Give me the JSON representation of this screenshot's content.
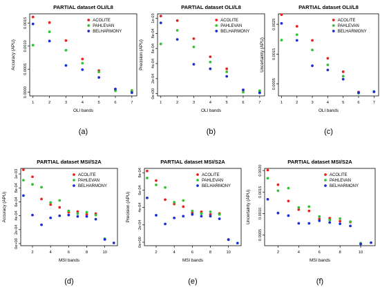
{
  "legend_labels": [
    "ACOLITE",
    "PAHLEVAN",
    "BELHARMONY"
  ],
  "colors": {
    "ACOLITE": "#e8221f",
    "PAHLEVAN": "#33c233",
    "BELHARMONY": "#1a2fd6"
  },
  "chart_data": [
    {
      "type": "scatter",
      "caption": "(a)",
      "title": "PARTIAL dataset OLI/L8",
      "xlabel": "OLI bands",
      "ylabel": "Accuracy (APU)",
      "xlim": [
        0.8,
        7.3
      ],
      "ylim": [
        -8e-05,
        0.0017
      ],
      "xticks": [
        1,
        2,
        3,
        4,
        5,
        6,
        7
      ],
      "xtick_labels": [
        "1",
        "2",
        "3",
        "4",
        "5",
        "6",
        "7"
      ],
      "yticks": [
        0,
        0.0005,
        0.001,
        0.0015
      ],
      "ytick_labels": [
        "0.0000",
        "0.0005",
        "0.0010",
        "0.0015"
      ],
      "legend_position": "top-right",
      "x": [
        1,
        2,
        3,
        4,
        5,
        6,
        7
      ],
      "series": [
        {
          "name": "ACOLITE",
          "values": [
            0.00163,
            0.00151,
            0.00112,
            0.00072,
            0.00047,
            7e-05,
            1e-05
          ]
        },
        {
          "name": "PAHLEVAN",
          "values": [
            0.00102,
            0.00131,
            0.00091,
            0.00063,
            0.00044,
            3e-05,
            4e-05
          ]
        },
        {
          "name": "BELHARMONY",
          "values": [
            0.00148,
            0.00111,
            0.00058,
            0.00049,
            0.00032,
            7e-05,
            -1e-05
          ]
        }
      ]
    },
    {
      "type": "scatter",
      "caption": "(b)",
      "title": "PARTIAL dataset OLI/L8",
      "xlabel": "OLI bands",
      "ylabel": "Precision (APU)",
      "xlim": [
        0.8,
        7.3
      ],
      "ylim": [
        -3e-05,
        0.00106
      ],
      "xticks": [
        1,
        2,
        3,
        4,
        5,
        6,
        7
      ],
      "xtick_labels": [
        "1",
        "2",
        "3",
        "4",
        "5",
        "6",
        "7"
      ],
      "yticks": [
        0,
        0.0002,
        0.0004,
        0.0006,
        0.0008,
        0.001
      ],
      "ytick_labels": [
        "0e+00",
        "2e-04",
        "4e-04",
        "6e-04",
        "8e-04",
        "1e-03"
      ],
      "legend_position": "top-right",
      "x": [
        1,
        2,
        3,
        4,
        5,
        6,
        7
      ],
      "series": [
        {
          "name": "ACOLITE",
          "values": [
            0.00103,
            0.00097,
            0.00073,
            0.00049,
            0.00033,
            5e-05,
            2e-05
          ]
        },
        {
          "name": "PAHLEVAN",
          "values": [
            0.00066,
            0.00084,
            0.00062,
            0.00042,
            0.00029,
            2e-05,
            4e-05
          ]
        },
        {
          "name": "BELHARMONY",
          "values": [
            0.00094,
            0.00072,
            0.00039,
            0.00033,
            0.00023,
            5e-05,
            1e-05
          ]
        }
      ]
    },
    {
      "type": "scatter",
      "caption": "(c)",
      "title": "PARTIAL dataset OLI/L8",
      "xlabel": "OLI bands",
      "ylabel": "Uncertainty (APU)",
      "xlim": [
        0.8,
        7.3
      ],
      "ylim": [
        0.0001,
        0.00285
      ],
      "xticks": [
        1,
        2,
        3,
        4,
        5,
        6,
        7
      ],
      "xtick_labels": [
        "1",
        "2",
        "3",
        "4",
        "5",
        "6",
        "7"
      ],
      "yticks": [
        0.0005,
        0.0015,
        0.0025
      ],
      "ytick_labels": [
        "0.0005",
        "0.0015",
        "0.0025"
      ],
      "legend_position": "top-right",
      "x": [
        1,
        2,
        3,
        4,
        5,
        6,
        7
      ],
      "series": [
        {
          "name": "ACOLITE",
          "values": [
            0.00282,
            0.00243,
            0.00196,
            0.00136,
            0.00091,
            0.00023,
            0.00024
          ]
        },
        {
          "name": "PAHLEVAN",
          "values": [
            0.00197,
            0.00215,
            0.00164,
            0.00114,
            0.00076,
            0.00019,
            0.00025
          ]
        },
        {
          "name": "BELHARMONY",
          "values": [
            0.00253,
            0.00196,
            0.00111,
            0.00097,
            0.00066,
            0.00021,
            0.00024
          ]
        }
      ]
    },
    {
      "type": "scatter",
      "caption": "(d)",
      "title": "PARTIAL dataset MSI/S2A",
      "xlabel": "MSI bands",
      "ylabel": "Accuracy (APU)",
      "xlim": [
        0.7,
        11.4
      ],
      "ylim": [
        -3e-05,
        0.00108
      ],
      "xticks": [
        2,
        4,
        6,
        8,
        10
      ],
      "xtick_labels": [
        "2",
        "4",
        "6",
        "8",
        "10"
      ],
      "yticks": [
        0,
        0.0002,
        0.0004,
        0.0006,
        0.0008,
        0.001
      ],
      "ytick_labels": [
        "0e+00",
        "2e-04",
        "4e-04",
        "6e-04",
        "8e-04",
        "1e-03"
      ],
      "legend_position": "top-right",
      "x": [
        1,
        2,
        3,
        4,
        5,
        6,
        7,
        8,
        9,
        10,
        11
      ],
      "series": [
        {
          "name": "ACOLITE",
          "values": [
            0.00106,
            0.00096,
            0.00064,
            0.00056,
            0.00052,
            0.00045,
            0.00046,
            0.00042,
            0.00043,
            6e-05,
            null
          ]
        },
        {
          "name": "PAHLEVAN",
          "values": [
            0.00091,
            0.00085,
            0.00081,
            0.00059,
            0.00062,
            0.00047,
            0.00043,
            0.00045,
            0.00041,
            7e-05,
            null
          ]
        },
        {
          "name": "BELHARMONY",
          "values": [
            0.00069,
            0.00041,
            0.00027,
            0.00037,
            0.0004,
            0.00041,
            0.00039,
            0.00039,
            0.00035,
            6e-05,
            1e-05
          ]
        }
      ]
    },
    {
      "type": "scatter",
      "caption": "(e)",
      "title": "PARTIAL dataset MSI/S2A",
      "xlabel": "MSI bands",
      "ylabel": "Precision (APU)",
      "xlim": [
        0.7,
        11.4
      ],
      "ylim": [
        -4e-05,
        0.00085
      ],
      "xticks": [
        2,
        4,
        6,
        8,
        10
      ],
      "xtick_labels": [
        "2",
        "4",
        "6",
        "8",
        "10"
      ],
      "yticks": [
        0,
        0.0002,
        0.0004,
        0.0006,
        0.0008
      ],
      "ytick_labels": [
        "0e+00",
        "2e-04",
        "4e-04",
        "6e-04",
        "8e-04"
      ],
      "legend_position": "top-right",
      "x": [
        1,
        2,
        3,
        4,
        5,
        6,
        7,
        8,
        9,
        10,
        11
      ],
      "series": [
        {
          "name": "ACOLITE",
          "values": [
            0.00082,
            0.00071,
            0.00049,
            0.00044,
            0.00041,
            0.00034,
            0.00035,
            0.00032,
            0.00033,
            3e-05,
            null
          ]
        },
        {
          "name": "PAHLEVAN",
          "values": [
            0.00074,
            0.00066,
            0.00063,
            0.00046,
            0.00048,
            0.00036,
            0.00033,
            0.00035,
            0.00032,
            3e-05,
            null
          ]
        },
        {
          "name": "BELHARMONY",
          "values": [
            0.00051,
            0.00031,
            0.00021,
            0.00028,
            0.0003,
            0.00032,
            0.0003,
            0.0003,
            0.00027,
            3e-05,
            -1e-05
          ]
        }
      ]
    },
    {
      "type": "scatter",
      "caption": "(f)",
      "title": "PARTIAL dataset MSI/S2A",
      "xlabel": "MSI bands",
      "ylabel": "Uncertainty (APU)",
      "xlim": [
        0.7,
        11.4
      ],
      "ylim": [
        0.00025,
        0.00205
      ],
      "xticks": [
        2,
        4,
        6,
        8,
        10
      ],
      "xtick_labels": [
        "2",
        "4",
        "6",
        "8",
        "10"
      ],
      "yticks": [
        0.0005,
        0.001,
        0.0015,
        0.002
      ],
      "ytick_labels": [
        "0.0005",
        "0.0010",
        "0.0015",
        "0.0020"
      ],
      "legend_position": "top-right",
      "x": [
        1,
        2,
        3,
        4,
        5,
        6,
        7,
        8,
        9,
        10,
        11
      ],
      "series": [
        {
          "name": "ACOLITE",
          "values": [
            0.00201,
            0.00167,
            0.00129,
            0.00109,
            0.00106,
            0.00087,
            0.00089,
            0.00082,
            0.0008,
            0.00029,
            null
          ]
        },
        {
          "name": "PAHLEVAN",
          "values": [
            0.00182,
            0.00153,
            0.00159,
            0.00114,
            0.00116,
            0.00093,
            0.00085,
            0.00088,
            0.00081,
            0.00031,
            null
          ]
        },
        {
          "name": "BELHARMONY",
          "values": [
            0.00133,
            0.00101,
            0.00095,
            0.00077,
            0.00077,
            0.00083,
            0.00079,
            0.00076,
            0.00071,
            0.00029,
            0.00032
          ]
        }
      ]
    }
  ]
}
